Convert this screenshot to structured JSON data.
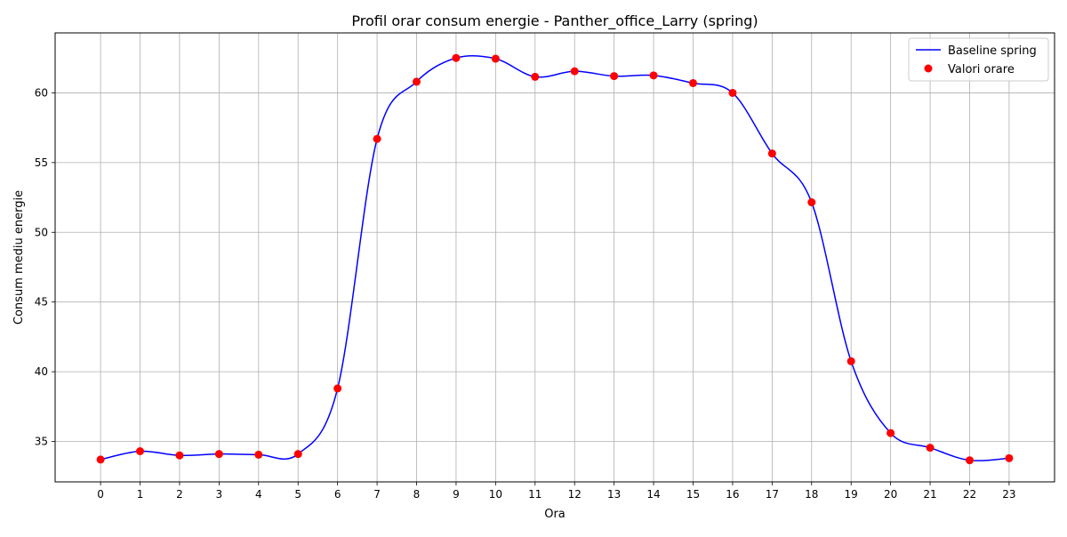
{
  "chart_data": {
    "type": "line",
    "title": "Profil orar consum energie - Panther_office_Larry (spring)",
    "xlabel": "Ora",
    "ylabel": "Consum mediu energie",
    "x": [
      0,
      1,
      2,
      3,
      4,
      5,
      6,
      7,
      8,
      9,
      10,
      11,
      12,
      13,
      14,
      15,
      16,
      17,
      18,
      19,
      20,
      21,
      22,
      23
    ],
    "xlim": [
      -1.15,
      24.15
    ],
    "ylim": [
      32.1,
      64.3
    ],
    "yticks": [
      35,
      40,
      45,
      50,
      55,
      60
    ],
    "grid": true,
    "legend_position": "top-right",
    "series": [
      {
        "name": "Baseline spring",
        "kind": "line",
        "smooth": true,
        "color": "#0000ff",
        "values": [
          33.7,
          34.3,
          34.0,
          34.1,
          34.05,
          34.1,
          38.8,
          56.7,
          60.8,
          62.5,
          62.45,
          61.15,
          61.55,
          61.2,
          61.25,
          60.7,
          60.0,
          55.65,
          52.15,
          40.75,
          35.6,
          34.55,
          33.65,
          33.8
        ]
      },
      {
        "name": "Valori orare",
        "kind": "scatter",
        "color": "#ff0000",
        "values": [
          33.7,
          34.3,
          34.0,
          34.1,
          34.05,
          34.1,
          38.8,
          56.7,
          60.8,
          62.5,
          62.45,
          61.15,
          61.55,
          61.2,
          61.25,
          60.7,
          60.0,
          55.65,
          52.15,
          40.75,
          35.6,
          34.55,
          33.65,
          33.8
        ]
      }
    ]
  }
}
